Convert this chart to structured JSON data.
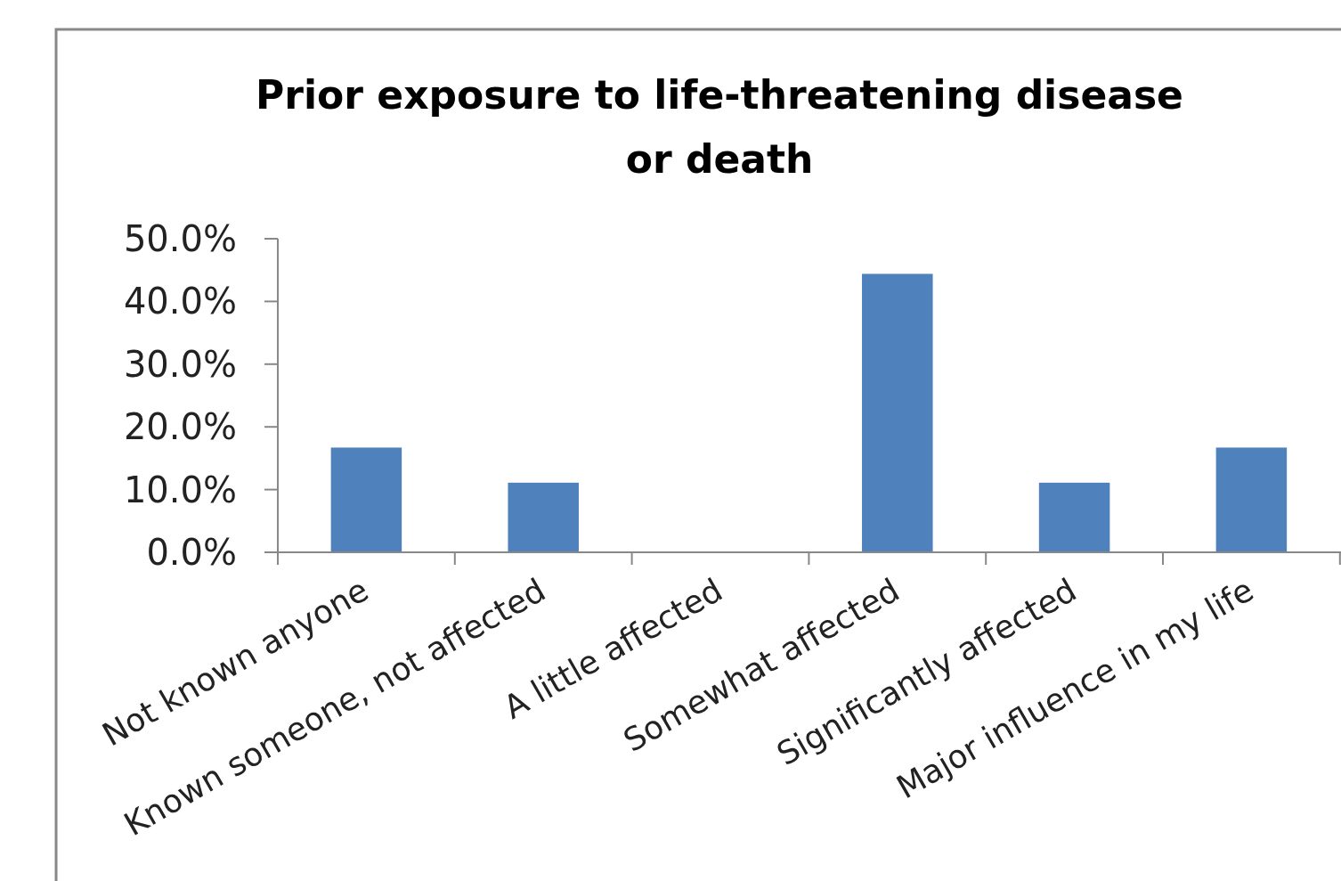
{
  "chart_data": {
    "type": "bar",
    "title": "Prior exposure to life-threatening disease or death",
    "categories": [
      "Not known anyone",
      "Known someone, not affected",
      "A little affected",
      "Somewhat affected",
      "Significantly affected",
      "Major influence in my life"
    ],
    "values": [
      16.7,
      11.1,
      0,
      44.4,
      11.1,
      16.7
    ],
    "color": "#4f81bd",
    "ylim": [
      0,
      50
    ],
    "yticks": [
      {
        "value": 0,
        "label": "0.0%"
      },
      {
        "value": 10,
        "label": "10.0%"
      },
      {
        "value": 20,
        "label": "20.0%"
      },
      {
        "value": 30,
        "label": "30.0%"
      },
      {
        "value": 40,
        "label": "40.0%"
      },
      {
        "value": 50,
        "label": "50.0%"
      }
    ],
    "grid": false
  }
}
